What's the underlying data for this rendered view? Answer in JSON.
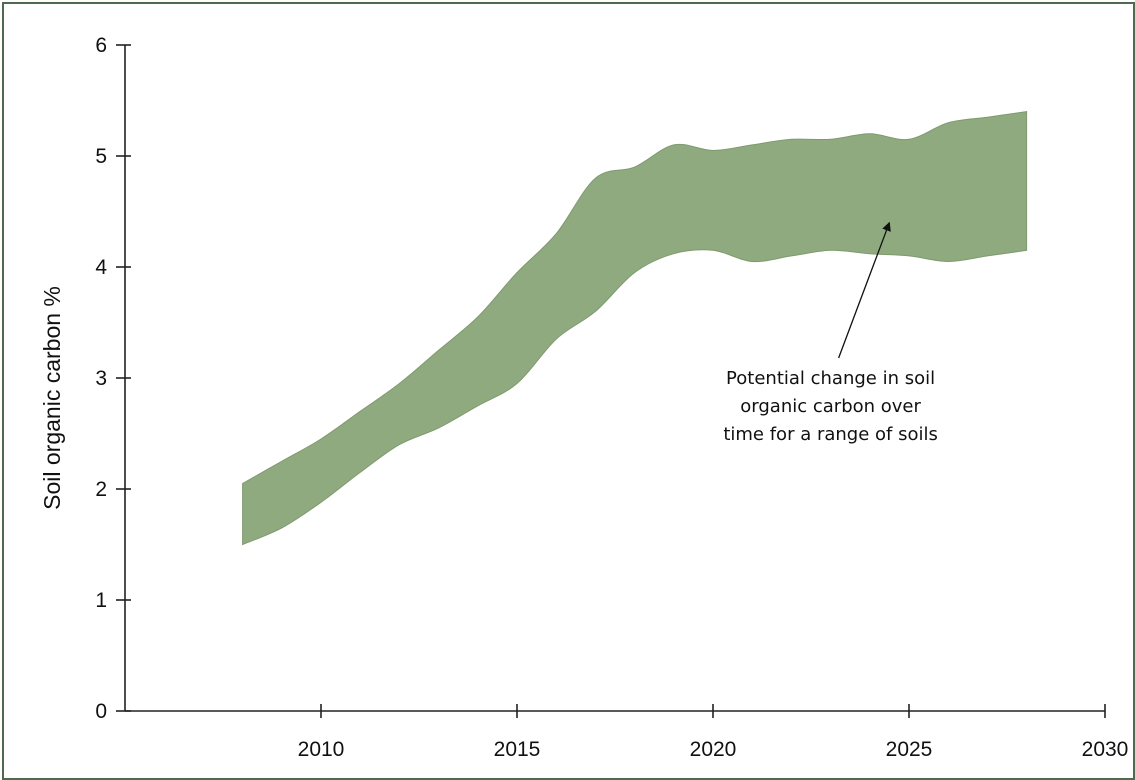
{
  "chart_data": {
    "type": "area",
    "title": "",
    "xlabel": "",
    "ylabel": "Soil organic carbon %",
    "xlim": [
      2005,
      2030
    ],
    "ylim": [
      0,
      6
    ],
    "x_ticks": [
      2010,
      2015,
      2020,
      2025,
      2030
    ],
    "y_ticks": [
      0,
      1,
      2,
      3,
      4,
      5,
      6
    ],
    "grid": false,
    "colors": {
      "band_fill": "#8faa7e",
      "band_edge": "#7f9a6f",
      "axis": "#222222",
      "frame": "#4f6b4f"
    },
    "series": [
      {
        "type": "band",
        "x": [
          2008,
          2009,
          2010,
          2011,
          2012,
          2013,
          2014,
          2015,
          2016,
          2017,
          2018,
          2019,
          2020,
          2021,
          2022,
          2023,
          2024,
          2025,
          2026,
          2027,
          2028
        ],
        "upper": [
          2.05,
          2.25,
          2.45,
          2.7,
          2.95,
          3.25,
          3.55,
          3.95,
          4.3,
          4.8,
          4.9,
          5.1,
          5.05,
          5.1,
          5.15,
          5.15,
          5.2,
          5.15,
          5.3,
          5.35,
          5.4
        ],
        "lower": [
          1.5,
          1.65,
          1.88,
          2.15,
          2.4,
          2.55,
          2.75,
          2.95,
          3.35,
          3.6,
          3.95,
          4.12,
          4.15,
          4.05,
          4.1,
          4.15,
          4.12,
          4.1,
          4.05,
          4.1,
          4.15
        ]
      }
    ],
    "annotations": [
      {
        "lines": [
          "Potential change in soil",
          "organic carbon over",
          "time for a range of soils"
        ],
        "text_at": [
          2023.0,
          3.0
        ],
        "arrow_to": [
          2024.5,
          4.4
        ]
      }
    ]
  }
}
